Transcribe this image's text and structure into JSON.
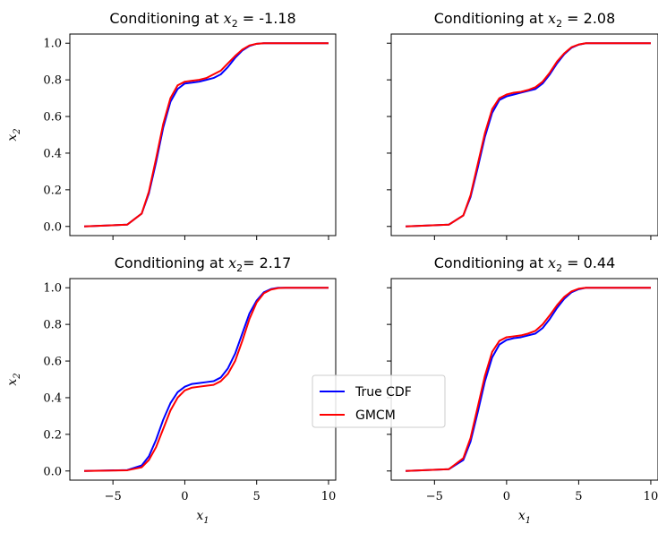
{
  "chart_data": [
    {
      "type": "line",
      "title": "Conditioning at ",
      "title_math": "x",
      "title_sub": "2",
      "title_value": " = -1.18",
      "ylabel": "x",
      "ylabel_sub": "2",
      "xlabel": "",
      "xlim": [
        -8,
        10.5
      ],
      "ylim": [
        -0.05,
        1.05
      ],
      "xticks": [
        "−5",
        "0",
        "5",
        "10"
      ],
      "show_xtick_labels": false,
      "yticks": [
        "0.0",
        "0.2",
        "0.4",
        "0.6",
        "0.8",
        "1.0"
      ],
      "show_ytick_labels": true,
      "series": [
        {
          "name": "True CDF",
          "color": "#0000ff",
          "x": [
            -7,
            -4,
            -3,
            -2.5,
            -2,
            -1.5,
            -1,
            -0.5,
            0,
            0.5,
            1,
            1.5,
            2,
            2.5,
            3,
            3.5,
            4,
            4.5,
            5,
            5.5,
            6,
            7,
            10
          ],
          "y": [
            0.0,
            0.01,
            0.07,
            0.18,
            0.35,
            0.54,
            0.68,
            0.75,
            0.78,
            0.785,
            0.79,
            0.8,
            0.81,
            0.83,
            0.87,
            0.92,
            0.96,
            0.985,
            0.997,
            1.0,
            1.0,
            1.0,
            1.0
          ]
        },
        {
          "name": "GMCM",
          "color": "#ff0000",
          "x": [
            -7,
            -4,
            -3,
            -2.5,
            -2,
            -1.5,
            -1,
            -0.5,
            0,
            0.5,
            1,
            1.5,
            2,
            2.5,
            3,
            3.5,
            4,
            4.5,
            5,
            5.5,
            6,
            7,
            10
          ],
          "y": [
            0.0,
            0.01,
            0.07,
            0.19,
            0.37,
            0.56,
            0.7,
            0.77,
            0.79,
            0.795,
            0.8,
            0.81,
            0.83,
            0.85,
            0.89,
            0.93,
            0.965,
            0.988,
            0.997,
            1.0,
            1.0,
            1.0,
            1.0
          ]
        }
      ]
    },
    {
      "type": "line",
      "title": "Conditioning at ",
      "title_math": "x",
      "title_sub": "2",
      "title_value": " = 2.08",
      "ylabel": "",
      "xlabel": "",
      "xlim": [
        -8,
        10.5
      ],
      "ylim": [
        -0.05,
        1.05
      ],
      "xticks": [
        "−5",
        "0",
        "5",
        "10"
      ],
      "show_xtick_labels": false,
      "yticks": [
        "0.0",
        "0.2",
        "0.4",
        "0.6",
        "0.8",
        "1.0"
      ],
      "show_ytick_labels": false,
      "series": [
        {
          "name": "True CDF",
          "color": "#0000ff",
          "x": [
            -7,
            -4,
            -3,
            -2.5,
            -2,
            -1.5,
            -1,
            -0.5,
            0,
            0.5,
            1,
            1.5,
            2,
            2.5,
            3,
            3.5,
            4,
            4.5,
            5,
            5.5,
            6,
            7,
            10
          ],
          "y": [
            0.0,
            0.01,
            0.06,
            0.16,
            0.32,
            0.49,
            0.62,
            0.69,
            0.71,
            0.72,
            0.73,
            0.74,
            0.75,
            0.78,
            0.83,
            0.89,
            0.94,
            0.975,
            0.992,
            1.0,
            1.0,
            1.0,
            1.0
          ]
        },
        {
          "name": "GMCM",
          "color": "#ff0000",
          "x": [
            -7,
            -4,
            -3,
            -2.5,
            -2,
            -1.5,
            -1,
            -0.5,
            0,
            0.5,
            1,
            1.5,
            2,
            2.5,
            3,
            3.5,
            4,
            4.5,
            5,
            5.5,
            6,
            7,
            10
          ],
          "y": [
            0.0,
            0.01,
            0.06,
            0.17,
            0.34,
            0.51,
            0.64,
            0.7,
            0.72,
            0.73,
            0.735,
            0.745,
            0.76,
            0.79,
            0.84,
            0.9,
            0.945,
            0.978,
            0.993,
            1.0,
            1.0,
            1.0,
            1.0
          ]
        }
      ]
    },
    {
      "type": "line",
      "title": "Conditioning at ",
      "title_math": "x",
      "title_sub": "2",
      "title_value": "= 2.17",
      "ylabel": "x",
      "ylabel_sub": "2",
      "xlabel": "x",
      "xlabel_sub": "1",
      "xlim": [
        -8,
        10.5
      ],
      "ylim": [
        -0.05,
        1.05
      ],
      "xticks": [
        "−5",
        "0",
        "5",
        "10"
      ],
      "show_xtick_labels": true,
      "yticks": [
        "0.0",
        "0.2",
        "0.4",
        "0.6",
        "0.8",
        "1.0"
      ],
      "show_ytick_labels": true,
      "series": [
        {
          "name": "True CDF",
          "color": "#0000ff",
          "x": [
            -7,
            -4,
            -3,
            -2.5,
            -2,
            -1.5,
            -1,
            -0.5,
            0,
            0.5,
            1,
            1.5,
            2,
            2.5,
            3,
            3.5,
            4,
            4.5,
            5,
            5.5,
            6,
            6.5,
            7,
            10
          ],
          "y": [
            0.0,
            0.005,
            0.03,
            0.08,
            0.17,
            0.28,
            0.37,
            0.43,
            0.46,
            0.475,
            0.48,
            0.485,
            0.49,
            0.51,
            0.56,
            0.64,
            0.75,
            0.86,
            0.93,
            0.975,
            0.993,
            1.0,
            1.0,
            1.0
          ]
        },
        {
          "name": "GMCM",
          "color": "#ff0000",
          "x": [
            -7,
            -4,
            -3,
            -2.5,
            -2,
            -1.5,
            -1,
            -0.5,
            0,
            0.5,
            1,
            1.5,
            2,
            2.5,
            3,
            3.5,
            4,
            4.5,
            5,
            5.5,
            6,
            6.5,
            7,
            10
          ],
          "y": [
            0.0,
            0.004,
            0.02,
            0.06,
            0.13,
            0.23,
            0.33,
            0.4,
            0.44,
            0.455,
            0.46,
            0.465,
            0.47,
            0.49,
            0.53,
            0.6,
            0.71,
            0.83,
            0.92,
            0.97,
            0.99,
            0.998,
            1.0,
            1.0
          ]
        }
      ]
    },
    {
      "type": "line",
      "title": "Conditioning at ",
      "title_math": "x",
      "title_sub": "2",
      "title_value": " = 0.44",
      "ylabel": "",
      "xlabel": "x",
      "xlabel_sub": "1",
      "xlim": [
        -8,
        10.5
      ],
      "ylim": [
        -0.05,
        1.05
      ],
      "xticks": [
        "−5",
        "0",
        "5",
        "10"
      ],
      "show_xtick_labels": true,
      "yticks": [
        "0.0",
        "0.2",
        "0.4",
        "0.6",
        "0.8",
        "1.0"
      ],
      "show_ytick_labels": false,
      "series": [
        {
          "name": "True CDF",
          "color": "#0000ff",
          "x": [
            -7,
            -4,
            -3,
            -2.5,
            -2,
            -1.5,
            -1,
            -0.5,
            0,
            0.5,
            1,
            1.5,
            2,
            2.5,
            3,
            3.5,
            4,
            4.5,
            5,
            5.5,
            6,
            7,
            10
          ],
          "y": [
            0.0,
            0.01,
            0.06,
            0.16,
            0.32,
            0.49,
            0.62,
            0.69,
            0.715,
            0.725,
            0.73,
            0.74,
            0.75,
            0.78,
            0.83,
            0.89,
            0.94,
            0.975,
            0.992,
            1.0,
            1.0,
            1.0,
            1.0
          ]
        },
        {
          "name": "GMCM",
          "color": "#ff0000",
          "x": [
            -7,
            -4,
            -3,
            -2.5,
            -2,
            -1.5,
            -1,
            -0.5,
            0,
            0.5,
            1,
            1.5,
            2,
            2.5,
            3,
            3.5,
            4,
            4.5,
            5,
            5.5,
            6,
            7,
            10
          ],
          "y": [
            0.0,
            0.01,
            0.07,
            0.18,
            0.35,
            0.52,
            0.65,
            0.71,
            0.73,
            0.735,
            0.74,
            0.75,
            0.765,
            0.8,
            0.85,
            0.905,
            0.95,
            0.98,
            0.995,
            1.0,
            1.0,
            1.0,
            1.0
          ]
        }
      ]
    }
  ],
  "legend": {
    "entries": [
      {
        "label": "True CDF",
        "color": "#0000ff"
      },
      {
        "label": "GMCM",
        "color": "#ff0000"
      }
    ]
  }
}
